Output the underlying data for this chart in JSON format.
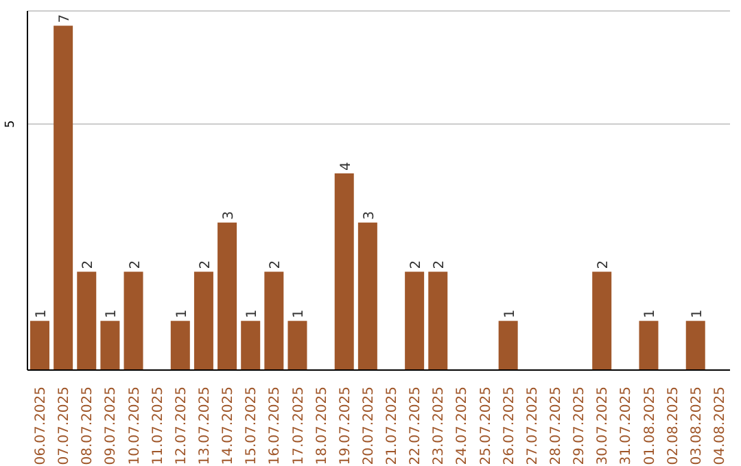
{
  "chart_data": {
    "type": "bar",
    "categories": [
      "06.07.2025",
      "07.07.2025",
      "08.07.2025",
      "09.07.2025",
      "10.07.2025",
      "11.07.2025",
      "12.07.2025",
      "13.07.2025",
      "14.07.2025",
      "15.07.2025",
      "16.07.2025",
      "17.07.2025",
      "18.07.2025",
      "19.07.2025",
      "20.07.2025",
      "21.07.2025",
      "22.07.2025",
      "23.07.2025",
      "24.07.2025",
      "25.07.2025",
      "26.07.2025",
      "27.07.2025",
      "28.07.2025",
      "29.07.2025",
      "30.07.2025",
      "31.07.2025",
      "01.08.2025",
      "02.08.2025",
      "03.08.2025",
      "04.08.2025"
    ],
    "values": [
      1,
      7,
      2,
      1,
      2,
      0,
      1,
      2,
      3,
      1,
      2,
      1,
      0,
      4,
      3,
      0,
      2,
      2,
      0,
      0,
      1,
      0,
      0,
      0,
      2,
      0,
      1,
      0,
      1,
      0
    ],
    "value_labels": [
      "1",
      "7",
      "2",
      "1",
      "2",
      null,
      "1",
      "2",
      "3",
      "1",
      "2",
      "1",
      null,
      "4",
      "3",
      null,
      "2",
      "2",
      null,
      null,
      "1",
      null,
      null,
      null,
      "2",
      null,
      "1",
      null,
      "1",
      null
    ],
    "color": "#a0572a",
    "ylim": [
      0,
      7.3
    ],
    "yticks": [
      5
    ],
    "grid": "y"
  }
}
